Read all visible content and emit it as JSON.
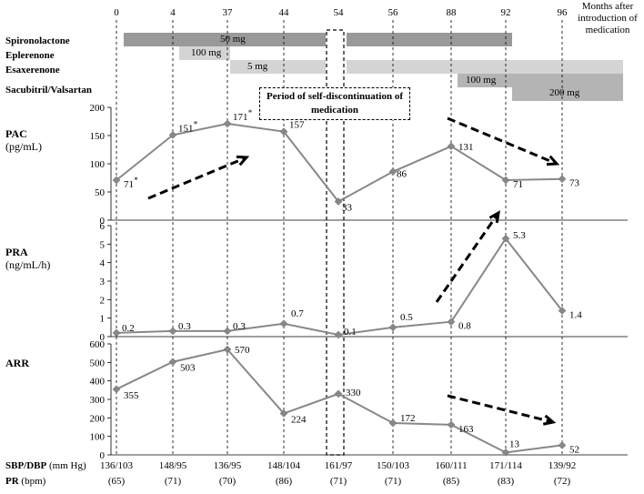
{
  "chart_data": [
    {
      "type": "line",
      "ylabel": "PAC",
      "yunit": "(pg/mL)",
      "ylim": [
        0,
        200
      ],
      "yticks": [
        0,
        50,
        100,
        150,
        200
      ],
      "x": [
        0,
        4,
        37,
        44,
        54,
        56,
        88,
        92,
        96
      ],
      "values": [
        71,
        151,
        171,
        157,
        33,
        86,
        131,
        71,
        73
      ],
      "point_labels": [
        "71",
        "151",
        "171",
        "157",
        "33",
        "86",
        "131",
        "71",
        "73"
      ],
      "starred": [
        true,
        true,
        true,
        true,
        false,
        false,
        false,
        false,
        false
      ],
      "trend_arrows": [
        "up",
        "down"
      ]
    },
    {
      "type": "line",
      "ylabel": "PRA",
      "yunit": "(ng/mL/h)",
      "ylim": [
        0,
        6
      ],
      "yticks": [
        0,
        1,
        2,
        3,
        4,
        5,
        6
      ],
      "x": [
        0,
        4,
        37,
        44,
        54,
        56,
        88,
        92,
        96
      ],
      "values": [
        0.2,
        0.3,
        0.3,
        0.7,
        0.1,
        0.5,
        0.8,
        5.3,
        1.4
      ],
      "point_labels": [
        "0.2",
        "0.3",
        "0.3",
        "0.7",
        "0.1",
        "0.5",
        "0.8",
        "5.3",
        "1.4"
      ],
      "trend_arrows": [
        "up"
      ]
    },
    {
      "type": "line",
      "ylabel": "ARR",
      "yunit": "",
      "ylim": [
        0,
        600
      ],
      "yticks": [
        0,
        100,
        200,
        300,
        400,
        500,
        600
      ],
      "x": [
        0,
        4,
        37,
        44,
        54,
        56,
        88,
        92,
        96
      ],
      "values": [
        355,
        503,
        570,
        224,
        330,
        172,
        163,
        13,
        52
      ],
      "point_labels": [
        "355",
        "503",
        "570",
        "224",
        "330",
        "172",
        "163",
        "13",
        "52"
      ],
      "trend_arrows": [
        "down"
      ]
    }
  ],
  "months": [
    "0",
    "4",
    "37",
    "44",
    "54",
    "56",
    "88",
    "92",
    "96"
  ],
  "months_caption": "Months after introduction of medication",
  "medications": [
    {
      "name": "Spironolactone",
      "bars": [
        {
          "from": 0,
          "to": 54,
          "dose": "50 mg",
          "color": "#999999"
        },
        {
          "from": 54,
          "to": 92,
          "dose": "",
          "color": "#999999"
        }
      ]
    },
    {
      "name": "Eplerenone",
      "bars": [
        {
          "from": 4,
          "to": 37,
          "dose": "100 mg",
          "color": "#d4d4d4"
        }
      ]
    },
    {
      "name": "Esaxerenone",
      "bars": [
        {
          "from": 37,
          "to": 54,
          "dose": "5 mg",
          "color": "#d4d4d4"
        },
        {
          "from": 54,
          "to": 100,
          "dose": "",
          "color": "#d4d4d4"
        }
      ]
    },
    {
      "name": "Sacubitril/Valsartan",
      "bars": [
        {
          "from": 88,
          "to": 100,
          "dose": "100 mg",
          "color": "#b4b4b4"
        },
        {
          "from": 92,
          "to": 100,
          "dose": "200 mg",
          "color": "#b4b4b4"
        }
      ]
    }
  ],
  "discontinuation_label": "Period of self-discontinuation of medication",
  "bp_label": "SBP/DBP",
  "bp_unit": "(mm Hg)",
  "pr_label": "PR",
  "pr_unit": "(bpm)",
  "bp_values": [
    "136/103",
    "148/95",
    "136/95",
    "148/104",
    "161/97",
    "150/103",
    "160/111",
    "171/114",
    "139/92"
  ],
  "pr_values": [
    "(65)",
    "(71)",
    "(70)",
    "(86)",
    "(71)",
    "(71)",
    "(85)",
    "(83)",
    "(72)"
  ]
}
